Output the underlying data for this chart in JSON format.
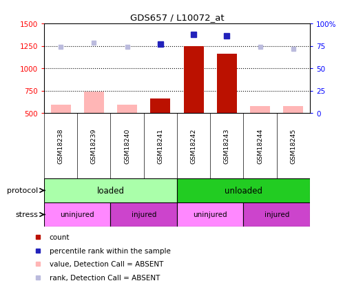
{
  "title": "GDS657 / L10072_at",
  "samples": [
    "GSM18238",
    "GSM18239",
    "GSM18240",
    "GSM18241",
    "GSM18242",
    "GSM18243",
    "GSM18244",
    "GSM18245"
  ],
  "bar_values_absent": [
    590,
    740,
    590,
    null,
    null,
    null,
    575,
    575
  ],
  "bar_values_present": [
    null,
    null,
    null,
    665,
    1250,
    1165,
    null,
    null
  ],
  "blue_squares_present": [
    null,
    null,
    null,
    1270,
    1375,
    1360,
    null,
    null
  ],
  "blue_squares_absent": [
    1240,
    1285,
    1235,
    null,
    null,
    null,
    1240,
    1215
  ],
  "ylim_left": [
    500,
    1500
  ],
  "ylim_right": [
    0,
    100
  ],
  "yticks_left": [
    500,
    750,
    1000,
    1250,
    1500
  ],
  "yticks_right": [
    0,
    25,
    50,
    75,
    100
  ],
  "color_bar_absent": "#FFB6B6",
  "color_bar_present": "#BB1100",
  "color_rank_absent": "#BBBBDD",
  "color_rank_present": "#2222BB",
  "color_protocol_loaded": "#AAFFAA",
  "color_protocol_unloaded": "#22CC22",
  "color_stress_uninjured": "#FF88FF",
  "color_stress_injured": "#CC44CC",
  "color_xlabel_bg": "#CCCCCC",
  "legend_items": [
    {
      "label": "count",
      "color": "#BB1100"
    },
    {
      "label": "percentile rank within the sample",
      "color": "#2222BB"
    },
    {
      "label": "value, Detection Call = ABSENT",
      "color": "#FFB6B6"
    },
    {
      "label": "rank, Detection Call = ABSENT",
      "color": "#BBBBDD"
    }
  ]
}
